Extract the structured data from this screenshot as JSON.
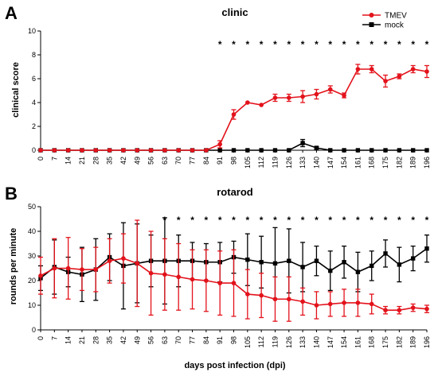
{
  "chart_data": [
    {
      "panel": "A",
      "type": "line",
      "title": "clinic",
      "ylabel": "clinical score",
      "xlabel": "",
      "ylim": [
        0,
        10
      ],
      "yticks": [
        0,
        2,
        4,
        6,
        8,
        10
      ],
      "x": [
        0,
        7,
        14,
        21,
        28,
        35,
        42,
        49,
        56,
        63,
        70,
        77,
        84,
        91,
        98,
        105,
        112,
        119,
        126,
        133,
        140,
        147,
        154,
        161,
        168,
        175,
        182,
        189,
        196
      ],
      "series": [
        {
          "name": "TMEV",
          "color": "#e3121b",
          "marker": "circle",
          "values": [
            0,
            0,
            0,
            0,
            0,
            0,
            0,
            0,
            0,
            0,
            0,
            0,
            0,
            0.5,
            3.0,
            4.0,
            3.8,
            4.4,
            4.4,
            4.5,
            4.7,
            5.1,
            4.6,
            6.8,
            6.8,
            5.8,
            6.2,
            6.8,
            6.6
          ],
          "errors": [
            0,
            0,
            0,
            0,
            0,
            0,
            0,
            0,
            0,
            0,
            0,
            0,
            0,
            0.3,
            0.4,
            0,
            0,
            0.3,
            0.3,
            0.5,
            0.4,
            0.3,
            0.2,
            0.4,
            0.3,
            0.5,
            0.2,
            0.3,
            0.5
          ]
        },
        {
          "name": "mock",
          "color": "#000000",
          "marker": "square",
          "values": [
            0,
            0,
            0,
            0,
            0,
            0,
            0,
            0,
            0,
            0,
            0,
            0,
            0,
            0,
            0,
            0,
            0,
            0,
            0,
            0.6,
            0.2,
            0,
            0,
            0,
            0,
            0,
            0,
            0,
            0
          ],
          "errors": [
            0,
            0,
            0,
            0,
            0,
            0,
            0,
            0,
            0,
            0,
            0,
            0,
            0,
            0,
            0,
            0,
            0,
            0,
            0,
            0.3,
            0.1,
            0,
            0,
            0,
            0,
            0,
            0,
            0,
            0
          ]
        }
      ],
      "significance_x": [
        91,
        98,
        105,
        112,
        119,
        126,
        133,
        140,
        147,
        154,
        161,
        168,
        175,
        182,
        189,
        196
      ],
      "significance_mark": "*",
      "legend": "top-right"
    },
    {
      "panel": "B",
      "type": "line",
      "title": "rotarod",
      "ylabel": "rounds per minute",
      "xlabel": "days post infection (dpi)",
      "ylim": [
        0,
        50
      ],
      "yticks": [
        0,
        10,
        20,
        30,
        40,
        50
      ],
      "x": [
        0,
        7,
        14,
        21,
        28,
        35,
        42,
        49,
        56,
        63,
        70,
        77,
        84,
        91,
        98,
        105,
        112,
        119,
        126,
        133,
        140,
        147,
        154,
        161,
        168,
        175,
        182,
        189,
        196
      ],
      "series": [
        {
          "name": "TMEV",
          "color": "#e3121b",
          "marker": "circle",
          "values": [
            22,
            25,
            25,
            24.5,
            24.5,
            28,
            29,
            27,
            23,
            22.5,
            21.5,
            20.5,
            20,
            19,
            19,
            14.5,
            14,
            12.5,
            12.5,
            11.5,
            10,
            10.5,
            11,
            11,
            10.5,
            8,
            8,
            9,
            8.5
          ],
          "errors": [
            7.5,
            12,
            12.5,
            8.5,
            9,
            9,
            10,
            17.5,
            17,
            14.5,
            13.5,
            12,
            12.5,
            13,
            13.5,
            10,
            9,
            9,
            9,
            5.5,
            5.5,
            5,
            5.5,
            5.5,
            4,
            1.5,
            1.5,
            1.5,
            1.5
          ]
        },
        {
          "name": "mock",
          "color": "#000000",
          "marker": "square",
          "values": [
            21,
            25.5,
            23.5,
            22.5,
            24.5,
            29.5,
            26,
            27,
            28,
            28,
            28,
            28,
            27.5,
            27.5,
            29.5,
            28.5,
            27.5,
            27,
            28,
            25.5,
            28,
            24,
            27.5,
            23.5,
            26,
            31,
            26.5,
            29,
            33
          ],
          "errors": [
            5,
            11,
            6,
            11,
            12.5,
            9.5,
            17.5,
            16,
            10.5,
            17.5,
            10.5,
            7.5,
            7.5,
            8,
            6.5,
            10.5,
            10.5,
            14.5,
            13,
            10,
            6,
            8,
            6.5,
            8,
            6,
            5.5,
            7,
            5,
            5.5
          ]
        }
      ],
      "significance_x": [
        63,
        70,
        77,
        84,
        91,
        98,
        105,
        112,
        119,
        126,
        133,
        140,
        147,
        154,
        161,
        168,
        175,
        182,
        189,
        196
      ],
      "significance_mark": "*"
    }
  ]
}
